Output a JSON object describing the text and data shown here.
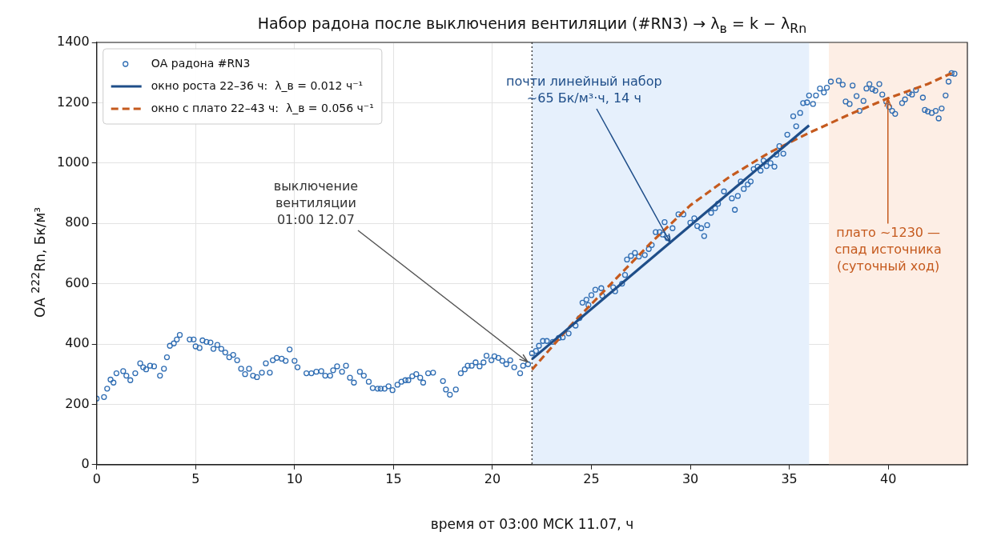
{
  "chart_data": {
    "type": "scatter",
    "title": "Набор радона после выключения вентиляции (#RN3) → λ$_{в}$ = k − λ$_{Rn}$",
    "xlabel": "время от 03:00 МСК 11.07, ч",
    "ylabel": "ОА $^{222}$Rn, Бк/м³",
    "xlim": [
      0,
      44
    ],
    "xticks": [
      0,
      5,
      10,
      15,
      20,
      25,
      30,
      35,
      40
    ],
    "ylim": [
      0,
      1400
    ],
    "yticks": [
      0,
      200,
      400,
      600,
      800,
      1000,
      1200,
      1400
    ],
    "grid": true,
    "legend": "top left",
    "series": [
      {
        "name": "ОА радона #RN3",
        "marker": "circle",
        "color": "#2f6db3",
        "x": [
          0,
          0.37,
          0.53,
          0.7,
          0.85,
          1.0,
          1.34,
          1.5,
          1.7,
          1.95,
          2.2,
          2.35,
          2.5,
          2.7,
          2.9,
          3.2,
          3.4,
          3.55,
          3.7,
          3.9,
          4.05,
          4.2,
          4.7,
          4.9,
          5.0,
          5.2,
          5.35,
          5.55,
          5.75,
          5.9,
          6.1,
          6.3,
          6.5,
          6.7,
          6.9,
          7.1,
          7.3,
          7.5,
          7.7,
          7.9,
          8.1,
          8.35,
          8.55,
          8.75,
          8.9,
          9.1,
          9.35,
          9.55,
          9.75,
          10.0,
          10.15,
          10.6,
          10.85,
          11.1,
          11.35,
          11.55,
          11.8,
          11.95,
          12.15,
          12.4,
          12.6,
          12.8,
          13.0,
          13.3,
          13.5,
          13.75,
          13.95,
          14.2,
          14.35,
          14.55,
          14.75,
          14.95,
          15.2,
          15.4,
          15.6,
          15.75,
          15.95,
          16.15,
          16.35,
          16.5,
          16.75,
          17.0,
          17.5,
          17.65,
          17.85,
          18.15,
          18.4,
          18.6,
          18.75,
          18.95,
          19.15,
          19.35,
          19.55,
          19.7,
          19.95,
          20.1,
          20.3,
          20.5,
          20.7,
          20.9,
          21.1,
          21.4,
          21.55,
          21.8,
          22.0,
          22.2,
          22.35,
          22.55,
          22.75,
          23.05,
          23.35,
          23.55,
          23.85,
          24.2,
          24.4,
          24.55,
          24.75,
          24.85,
          25.0,
          25.2,
          25.5,
          25.55,
          26.1,
          26.2,
          26.55,
          26.7,
          26.8,
          27.0,
          27.2,
          27.4,
          27.7,
          27.9,
          28.05,
          28.25,
          28.45,
          28.6,
          28.7,
          28.85,
          29.1,
          29.4,
          29.65,
          30.0,
          30.2,
          30.35,
          30.55,
          30.7,
          30.85,
          31.05,
          31.25,
          31.4,
          31.7,
          32.1,
          32.25,
          32.4,
          32.55,
          32.7,
          32.9,
          33.05,
          33.2,
          33.4,
          33.55,
          33.7,
          33.85,
          34.05,
          34.25,
          34.35,
          34.5,
          34.7,
          34.9,
          35.2,
          35.35,
          35.55,
          35.7,
          35.9,
          36.0,
          36.2,
          36.35,
          36.55,
          36.75,
          36.9,
          37.1,
          37.5,
          37.7,
          37.85,
          38.05,
          38.2,
          38.4,
          38.55,
          38.75,
          38.9,
          39.05,
          39.2,
          39.35,
          39.55,
          39.7,
          39.9,
          40.05,
          40.2,
          40.35,
          40.7,
          40.85,
          41.05,
          41.2,
          41.4,
          41.75,
          41.85,
          42.0,
          42.2,
          42.4,
          42.55,
          42.7,
          42.9,
          43.05,
          43.2,
          43.35
        ],
        "values": [
          219,
          224,
          252,
          282,
          272,
          303,
          310,
          295,
          280,
          303,
          336,
          323,
          316,
          328,
          326,
          295,
          318,
          356,
          394,
          402,
          415,
          430,
          415,
          415,
          392,
          387,
          412,
          407,
          405,
          384,
          397,
          384,
          372,
          356,
          364,
          346,
          318,
          300,
          318,
          295,
          290,
          305,
          336,
          305,
          346,
          354,
          351,
          344,
          382,
          344,
          323,
          303,
          303,
          308,
          310,
          295,
          295,
          313,
          326,
          308,
          328,
          288,
          272,
          308,
          295,
          275,
          254,
          252,
          252,
          252,
          260,
          247,
          265,
          275,
          280,
          280,
          293,
          300,
          288,
          272,
          303,
          305,
          277,
          249,
          232,
          249,
          303,
          316,
          328,
          328,
          339,
          326,
          339,
          361,
          346,
          359,
          354,
          344,
          333,
          346,
          323,
          303,
          328,
          333,
          369,
          377,
          394,
          410,
          410,
          407,
          420,
          422,
          435,
          461,
          486,
          537,
          547,
          529,
          562,
          580,
          585,
          560,
          588,
          575,
          600,
          629,
          680,
          692,
          702,
          690,
          695,
          715,
          728,
          771,
          771,
          763,
          804,
          751,
          784,
          830,
          830,
          802,
          817,
          791,
          784,
          758,
          794,
          835,
          850,
          865,
          906,
          883,
          845,
          891,
          939,
          914,
          929,
          939,
          980,
          988,
          975,
          1008,
          990,
          1000,
          988,
          1028,
          1056,
          1031,
          1094,
          1155,
          1122,
          1166,
          1199,
          1201,
          1224,
          1196,
          1224,
          1247,
          1234,
          1250,
          1270,
          1273,
          1260,
          1204,
          1196,
          1257,
          1222,
          1173,
          1206,
          1247,
          1262,
          1245,
          1240,
          1262,
          1227,
          1204,
          1186,
          1173,
          1163,
          1199,
          1211,
          1232,
          1227,
          1242,
          1217,
          1176,
          1171,
          1166,
          1173,
          1148,
          1181,
          1224,
          1270,
          1298,
          1296
        ]
      },
      {
        "name": "окно роста 22–36 ч:  λ_в = 0.012 ч⁻¹",
        "type": "line",
        "color": "#1f4e89",
        "x": [
          22,
          36
        ],
        "values": [
          350,
          1125
        ]
      },
      {
        "name": "окно с плато 22–43 ч:  λ_в = 0.056 ч⁻¹",
        "type": "line",
        "color": "#c55a1e",
        "line_style": "dashed",
        "x": [
          22,
          24,
          26,
          28,
          30,
          32,
          34,
          36,
          38,
          40,
          42,
          43.2
        ],
        "values": [
          315,
          465,
          600,
          735,
          860,
          955,
          1035,
          1100,
          1160,
          1215,
          1262,
          1298
        ]
      }
    ],
    "ref_lines": [
      {
        "axis": "x",
        "value": 22,
        "color": "#444444",
        "line_style": "dotted"
      }
    ],
    "bands": [
      {
        "axis": "x",
        "from": 22,
        "to": 36,
        "color": "#e6f0fc"
      },
      {
        "axis": "x",
        "from": 37,
        "to": 44,
        "color": "#fdeee5"
      }
    ],
    "annotations": [
      {
        "text": "выключение\nвентиляции\n01:00 12.07",
        "x": 21.8,
        "y": 340
      },
      {
        "text": "почти линейный набор\n~65 Бк/м³·ч, 14 ч",
        "x": 29,
        "y": 737
      },
      {
        "text": "плато ~1230 —\nспад источника\n(суточный ход)",
        "x": 40,
        "y": 1215
      }
    ]
  }
}
